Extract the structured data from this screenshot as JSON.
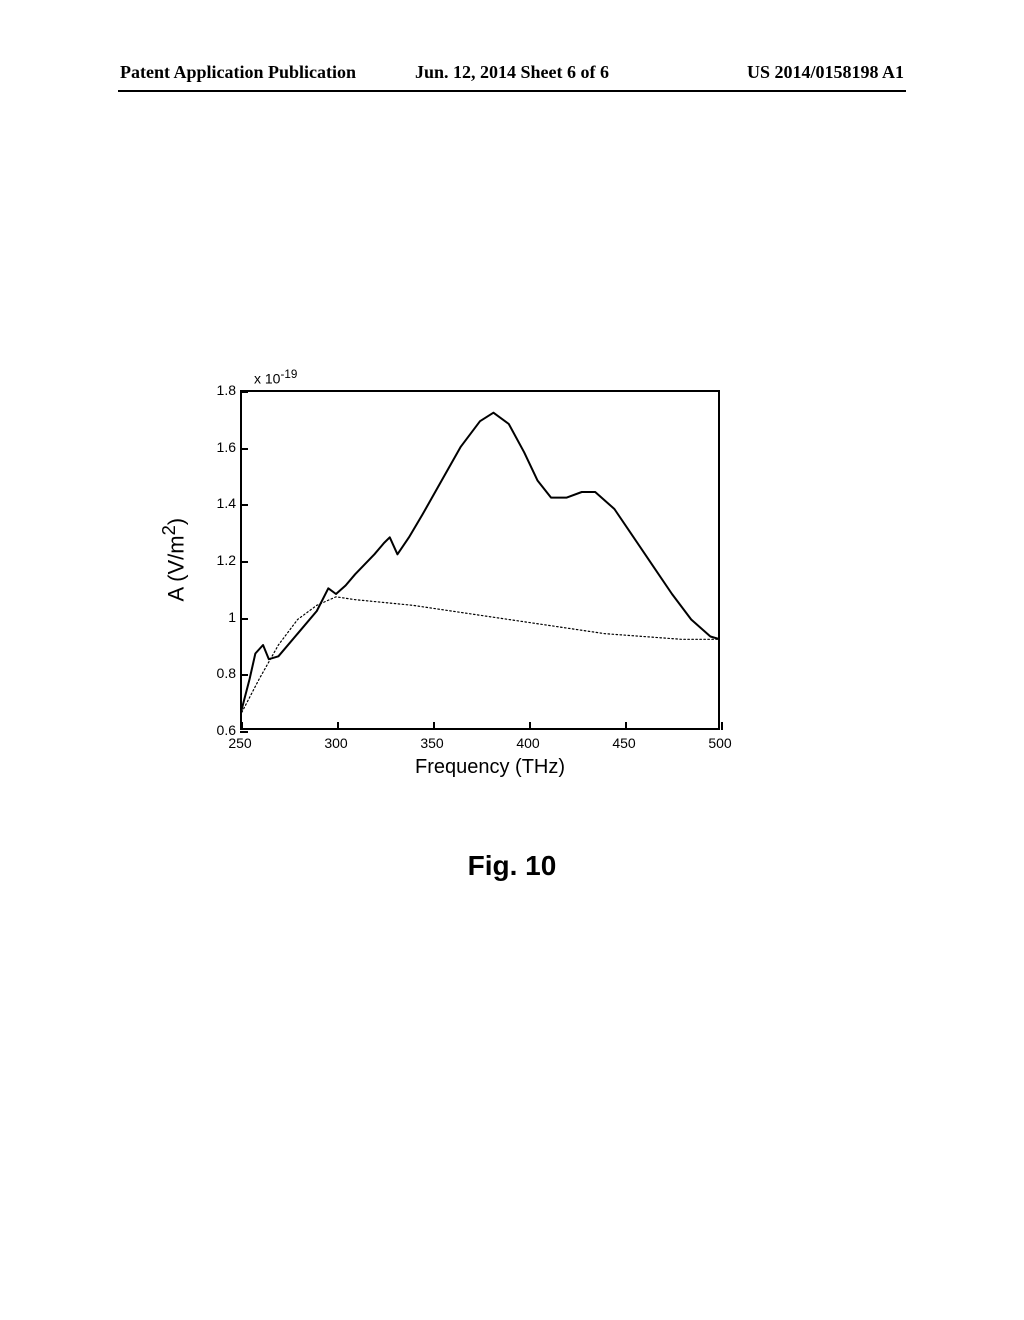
{
  "header": {
    "left": "Patent Application Publication",
    "center": "Jun. 12, 2014 Sheet 6 of 6",
    "right": "US 2014/0158198 A1"
  },
  "chart": {
    "type": "line",
    "xlabel": "Frequency (THz)",
    "ylabel_html": "A  (V/m<sup>2</sup>)",
    "exponent_html": "x 10<sup>-19</sup>",
    "xlim": [
      250,
      500
    ],
    "ylim": [
      0.6,
      1.8
    ],
    "xtick_step": 50,
    "ytick_step": 0.2,
    "xticks": [
      250,
      300,
      350,
      400,
      450,
      500
    ],
    "yticks": [
      0.6,
      0.8,
      1.0,
      1.2,
      1.4,
      1.6,
      1.8
    ],
    "ytick_labels": [
      "0.6",
      "0.8",
      "1",
      "1.2",
      "1.4",
      "1.6",
      "1.8"
    ],
    "line_color": "#000000",
    "line_width_solid": 2,
    "line_width_dotted": 1.2,
    "background_color": "#ffffff",
    "axis_color": "#000000",
    "series_solid": [
      {
        "x": 250,
        "y": 0.65
      },
      {
        "x": 255,
        "y": 0.78
      },
      {
        "x": 258,
        "y": 0.87
      },
      {
        "x": 262,
        "y": 0.9
      },
      {
        "x": 265,
        "y": 0.85
      },
      {
        "x": 270,
        "y": 0.86
      },
      {
        "x": 280,
        "y": 0.94
      },
      {
        "x": 290,
        "y": 1.02
      },
      {
        "x": 296,
        "y": 1.1
      },
      {
        "x": 300,
        "y": 1.08
      },
      {
        "x": 305,
        "y": 1.11
      },
      {
        "x": 310,
        "y": 1.15
      },
      {
        "x": 320,
        "y": 1.22
      },
      {
        "x": 325,
        "y": 1.26
      },
      {
        "x": 328,
        "y": 1.28
      },
      {
        "x": 332,
        "y": 1.22
      },
      {
        "x": 338,
        "y": 1.28
      },
      {
        "x": 345,
        "y": 1.36
      },
      {
        "x": 355,
        "y": 1.48
      },
      {
        "x": 365,
        "y": 1.6
      },
      {
        "x": 375,
        "y": 1.69
      },
      {
        "x": 382,
        "y": 1.72
      },
      {
        "x": 390,
        "y": 1.68
      },
      {
        "x": 398,
        "y": 1.58
      },
      {
        "x": 405,
        "y": 1.48
      },
      {
        "x": 412,
        "y": 1.42
      },
      {
        "x": 420,
        "y": 1.42
      },
      {
        "x": 428,
        "y": 1.44
      },
      {
        "x": 435,
        "y": 1.44
      },
      {
        "x": 445,
        "y": 1.38
      },
      {
        "x": 455,
        "y": 1.28
      },
      {
        "x": 465,
        "y": 1.18
      },
      {
        "x": 475,
        "y": 1.08
      },
      {
        "x": 485,
        "y": 0.99
      },
      {
        "x": 495,
        "y": 0.93
      },
      {
        "x": 500,
        "y": 0.92
      }
    ],
    "series_dotted": [
      {
        "x": 250,
        "y": 0.65
      },
      {
        "x": 260,
        "y": 0.78
      },
      {
        "x": 270,
        "y": 0.9
      },
      {
        "x": 280,
        "y": 0.99
      },
      {
        "x": 290,
        "y": 1.04
      },
      {
        "x": 300,
        "y": 1.07
      },
      {
        "x": 310,
        "y": 1.06
      },
      {
        "x": 325,
        "y": 1.05
      },
      {
        "x": 340,
        "y": 1.04
      },
      {
        "x": 360,
        "y": 1.02
      },
      {
        "x": 380,
        "y": 1.0
      },
      {
        "x": 400,
        "y": 0.98
      },
      {
        "x": 420,
        "y": 0.96
      },
      {
        "x": 440,
        "y": 0.94
      },
      {
        "x": 460,
        "y": 0.93
      },
      {
        "x": 480,
        "y": 0.92
      },
      {
        "x": 500,
        "y": 0.92
      }
    ]
  },
  "figure_caption": "Fig. 10",
  "fonts": {
    "header_family": "Times New Roman",
    "header_size_pt": 13,
    "tick_label_size_pt": 11,
    "axis_label_size_pt": 16,
    "caption_size_pt": 22
  }
}
